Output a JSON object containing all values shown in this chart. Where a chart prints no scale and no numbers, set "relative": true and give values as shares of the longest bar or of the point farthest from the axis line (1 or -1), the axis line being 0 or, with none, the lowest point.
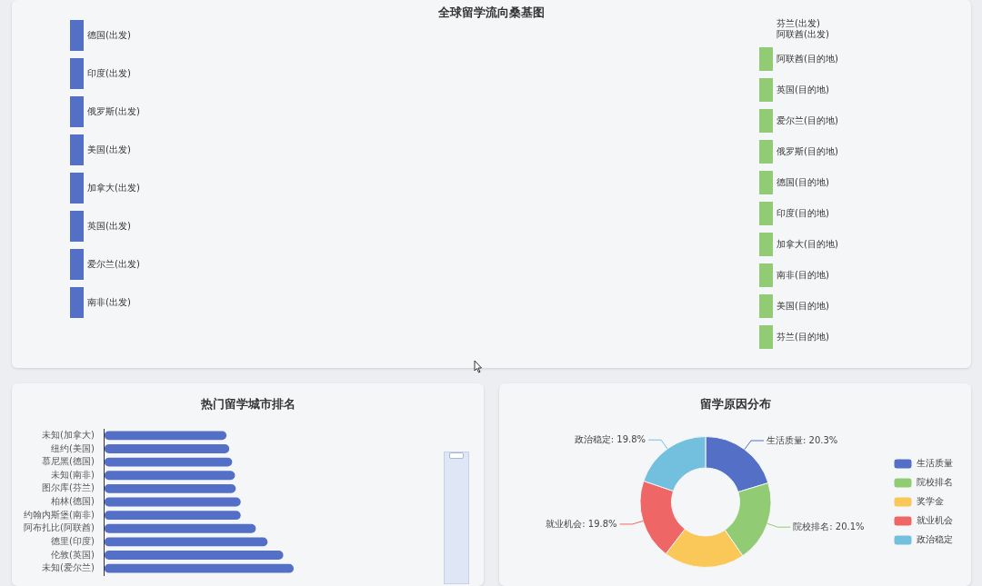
{
  "chart_data": [
    {
      "type": "other",
      "title": "全球留学流向桑基图",
      "categories": [
        "德国(出发)",
        "印度(出发)",
        "俄罗斯(出发)",
        "美国(出发)",
        "加拿大(出发)",
        "英国(出发)",
        "爱尔兰(出发)",
        "南非(出发)"
      ],
      "y_categories": [
        "阿联酋(目的地)",
        "英国(目的地)",
        "爱尔兰(目的地)",
        "俄罗斯(目的地)",
        "德国(目的地)",
        "印度(目的地)",
        "加拿大(目的地)",
        "南非(目的地)",
        "美国(目的地)",
        "芬兰(目的地)"
      ],
      "annotations": [
        "芬兰(出发)",
        "阿联酋(出发)"
      ]
    },
    {
      "type": "bar",
      "orientation": "horizontal",
      "relative": true,
      "title": "热门留学城市排名",
      "categories": [
        "未知(加拿大)",
        "纽约(美国)",
        "慕尼黑(德国)",
        "未知(南非)",
        "图尔库(芬兰)",
        "柏林(德国)",
        "约翰内斯堡(南非)",
        "阿布扎比(阿联酋)",
        "德里(印度)",
        "伦敦(英国)",
        "未知(爱尔兰)"
      ],
      "values": [
        0.645,
        0.66,
        0.675,
        0.69,
        0.694,
        0.72,
        0.72,
        0.8,
        0.862,
        0.945,
        1
      ],
      "color": "#5470c6"
    },
    {
      "type": "donut",
      "title": "留学原因分布",
      "legend": "right",
      "categories": [
        "生活质量",
        "院校排名",
        "奖学金",
        "就业机会",
        "政治稳定"
      ],
      "values": [
        20.3,
        20.1,
        20.0,
        19.8,
        19.8
      ],
      "value_labels": [
        "生活质量: 20.3%",
        "院校排名: 20.1%",
        null,
        "就业机会: 19.8%",
        "政治稳定: 19.8%"
      ],
      "colors": [
        "#5470c6",
        "#91cc75",
        "#fac858",
        "#ee6666",
        "#73c0de"
      ]
    }
  ]
}
